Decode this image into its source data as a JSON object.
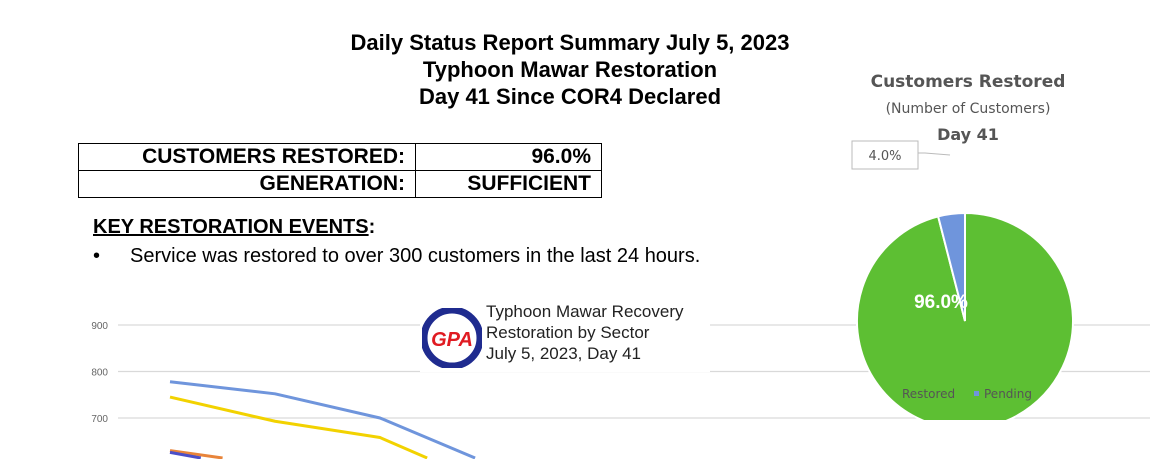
{
  "header": {
    "line1": "Daily Status Report Summary July 5, 2023",
    "line2": "Typhoon Mawar Restoration",
    "line3": "Day 41 Since COR4 Declared"
  },
  "status_table": [
    {
      "label": "CUSTOMERS RESTORED:",
      "value": "96.0%"
    },
    {
      "label": "GENERATION:",
      "value": "SUFFICIENT"
    }
  ],
  "events": {
    "heading": "KEY RESTORATION EVENTS",
    "colon": ":",
    "items": [
      "Service was restored to over 300 customers in the last 24 hours."
    ]
  },
  "logo_text": "GPA",
  "chart_data": [
    {
      "type": "line",
      "title_lines": [
        "Typhoon Mawar Recovery",
        "Restoration by Sector",
        "July 5, 2023, Day 41"
      ],
      "yticks": [
        700,
        800,
        900
      ],
      "grid": true,
      "series": [
        {
          "color": "#6f95dc",
          "values": [
            778,
            752,
            700,
            605
          ]
        },
        {
          "color": "#f2d200",
          "values": [
            745,
            693,
            658,
            560
          ]
        },
        {
          "color": "#e8843a",
          "values": [
            630,
            598
          ]
        },
        {
          "color": "#4b4fc8",
          "values": [
            626,
            585
          ]
        }
      ]
    },
    {
      "type": "pie",
      "title": "Customers Restored",
      "subtitle": "(Number of Customers)",
      "subtitle2": "Day 41",
      "slices": [
        {
          "name": "Restored",
          "value": 96.0,
          "label": "96.0%",
          "color": "#5dbf33"
        },
        {
          "name": "Pending",
          "value": 4.0,
          "label": "4.0%",
          "color": "#6f95dc"
        }
      ],
      "legend": "bottom"
    }
  ]
}
